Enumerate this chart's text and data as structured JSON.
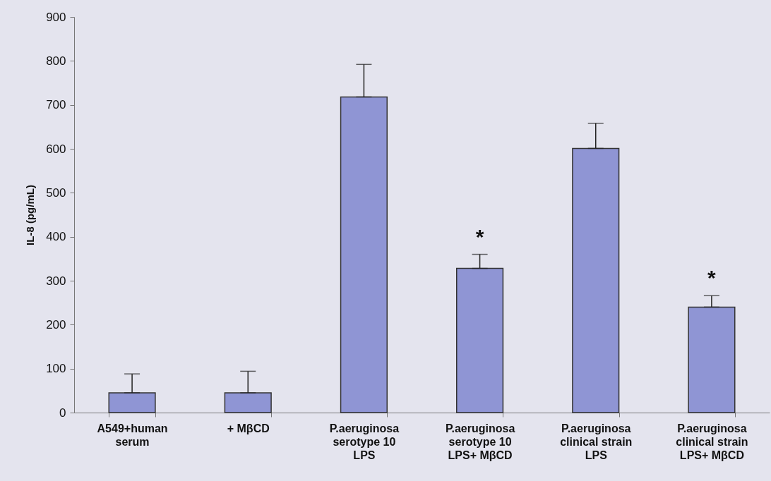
{
  "chart_data": {
    "type": "bar",
    "ylabel": "IL-8 (pg/mL)",
    "categories": [
      "A549+human\nserum",
      "+ MβCD",
      "P.aeruginosa\nserotype 10\nLPS",
      "P.aeruginosa\nserotype 10\nLPS+ MβCD",
      "P.aeruginosa\nclinical strain\nLPS",
      "P.aeruginosa\nclinical strain\nLPS+ MβCD"
    ],
    "values": [
      45,
      45,
      718,
      328,
      601,
      240
    ],
    "errors": [
      [
        45,
        88
      ],
      [
        45,
        94
      ],
      [
        718,
        792
      ],
      [
        328,
        360
      ],
      [
        601,
        658
      ],
      [
        240,
        266
      ]
    ],
    "color": "#8f95d4",
    "ylim": [
      0,
      900
    ],
    "yticks": [
      0,
      100,
      200,
      300,
      400,
      500,
      600,
      700,
      800,
      900
    ],
    "grid": false,
    "annotations": [
      {
        "text": "*",
        "x": "P.aeruginosa\nserotype 10\nLPS+ MβCD",
        "y": 360
      },
      {
        "text": "*",
        "x": "P.aeruginosa\nclinical strain\nLPS+ MβCD",
        "y": 266
      }
    ]
  }
}
